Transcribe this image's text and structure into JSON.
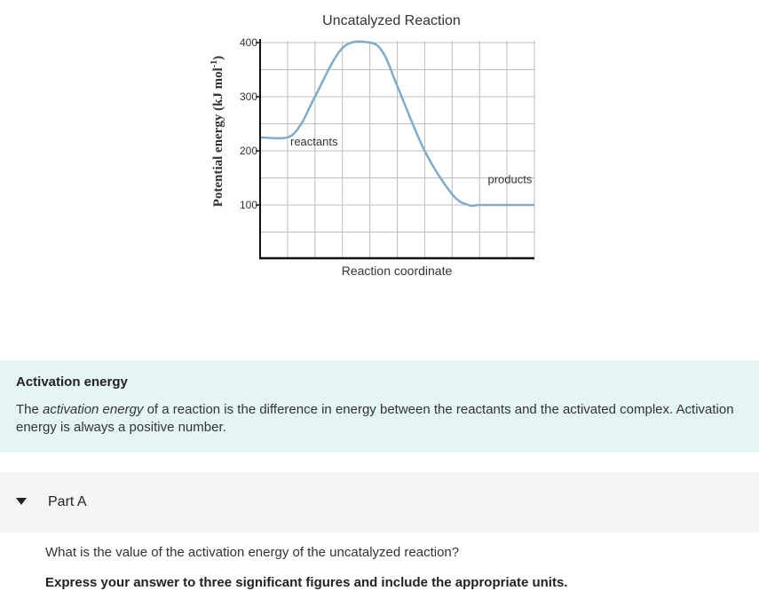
{
  "chart_data": {
    "type": "line",
    "title": "Uncatalyzed Reaction",
    "xlabel": "Reaction coordinate",
    "ylabel_main": "Potential energy (kJ mol",
    "ylabel_sup": "-1",
    "ylabel_close": ")",
    "ylim": [
      0,
      400
    ],
    "yticks": [
      "100",
      "200",
      "300",
      "400"
    ],
    "grid": true,
    "series": [
      {
        "x": [
          0,
          1,
          1.5,
          2,
          3,
          4,
          4.5,
          5,
          6,
          7,
          7.6,
          8,
          9,
          10
        ],
        "y": [
          225,
          225,
          250,
          300,
          390,
          400,
          380,
          320,
          200,
          120,
          100,
          100,
          100,
          100
        ]
      }
    ],
    "annotations": [
      {
        "text": "reactants",
        "x": 1.1,
        "y": 210
      },
      {
        "text": "products",
        "x": 8.3,
        "y": 140
      }
    ]
  },
  "info": {
    "title": "Activation energy",
    "text_pre": "The ",
    "text_em": "activation energy",
    "text_post": " of a reaction is the difference in energy between the reactants and the activated complex. Activation energy is always a positive number."
  },
  "part": {
    "label": "Part A",
    "question": "What is the value of the activation energy of the uncatalyzed reaction?",
    "instruction": "Express your answer to three significant figures and include the appropriate units."
  },
  "colors": {
    "curve": "#7fadc9",
    "grid": "#bdbdbd",
    "axis": "#111111"
  }
}
